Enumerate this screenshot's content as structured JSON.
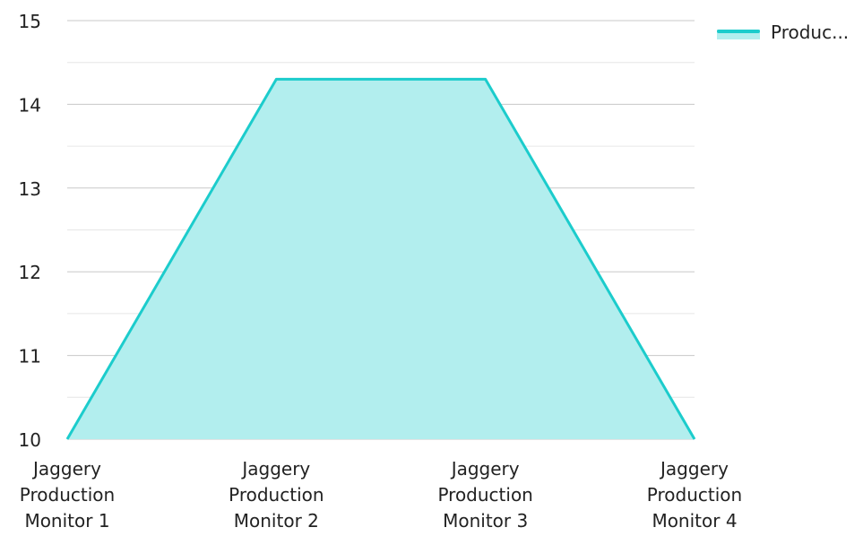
{
  "chart_data": {
    "type": "area",
    "categories": [
      [
        "Jaggery",
        "Production",
        "Monitor 1"
      ],
      [
        "Jaggery",
        "Production",
        "Monitor 2"
      ],
      [
        "Jaggery",
        "Production",
        "Monitor 3"
      ],
      [
        "Jaggery",
        "Production",
        "Monitor 4"
      ]
    ],
    "series": [
      {
        "name": "Produc...",
        "values": [
          10,
          14.3,
          14.3,
          10
        ],
        "line_color": "#1ccccc",
        "fill_color": "#b2eeee"
      }
    ],
    "y_ticks": [
      "10",
      "11",
      "12",
      "13",
      "14",
      "15"
    ],
    "ylim": [
      10,
      15
    ],
    "grid": true,
    "legend_position": "top-right",
    "title": "",
    "xlabel": "",
    "ylabel": ""
  }
}
